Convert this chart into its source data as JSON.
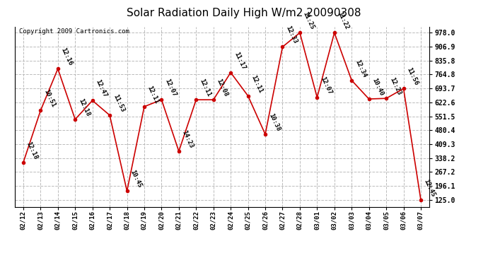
{
  "title": "Solar Radiation Daily High W/m2 20090308",
  "copyright": "Copyright 2009 Cartronics.com",
  "dates": [
    "02/12",
    "02/13",
    "02/14",
    "02/15",
    "02/16",
    "02/17",
    "02/18",
    "02/19",
    "02/20",
    "02/21",
    "02/22",
    "02/23",
    "02/24",
    "02/25",
    "02/26",
    "02/27",
    "02/28",
    "03/01",
    "03/02",
    "03/03",
    "03/04",
    "03/05",
    "03/06",
    "03/07"
  ],
  "values": [
    316,
    581,
    794,
    536,
    632,
    557,
    170,
    601,
    636,
    373,
    636,
    636,
    775,
    656,
    460,
    906,
    978,
    648,
    978,
    735,
    640,
    643,
    693,
    125
  ],
  "labels": [
    "12:18",
    "10:51",
    "12:16",
    "12:18",
    "12:47",
    "11:53",
    "10:45",
    "12:11",
    "12:07",
    "14:23",
    "12:11",
    "12:08",
    "11:17",
    "12:11",
    "10:38",
    "12:33",
    "11:25",
    "12:07",
    "11:22",
    "12:34",
    "10:40",
    "12:23",
    "11:56",
    "12:45"
  ],
  "line_color": "#cc0000",
  "marker_color": "#cc0000",
  "background_color": "#ffffff",
  "grid_color": "#bbbbbb",
  "ylim_min": 125.0,
  "ylim_max": 978.0,
  "yticks": [
    125.0,
    196.1,
    267.2,
    338.2,
    409.3,
    480.4,
    551.5,
    622.6,
    693.7,
    764.8,
    835.8,
    906.9,
    978.0
  ],
  "title_fontsize": 11,
  "label_fontsize": 6.5,
  "copyright_fontsize": 6.5
}
